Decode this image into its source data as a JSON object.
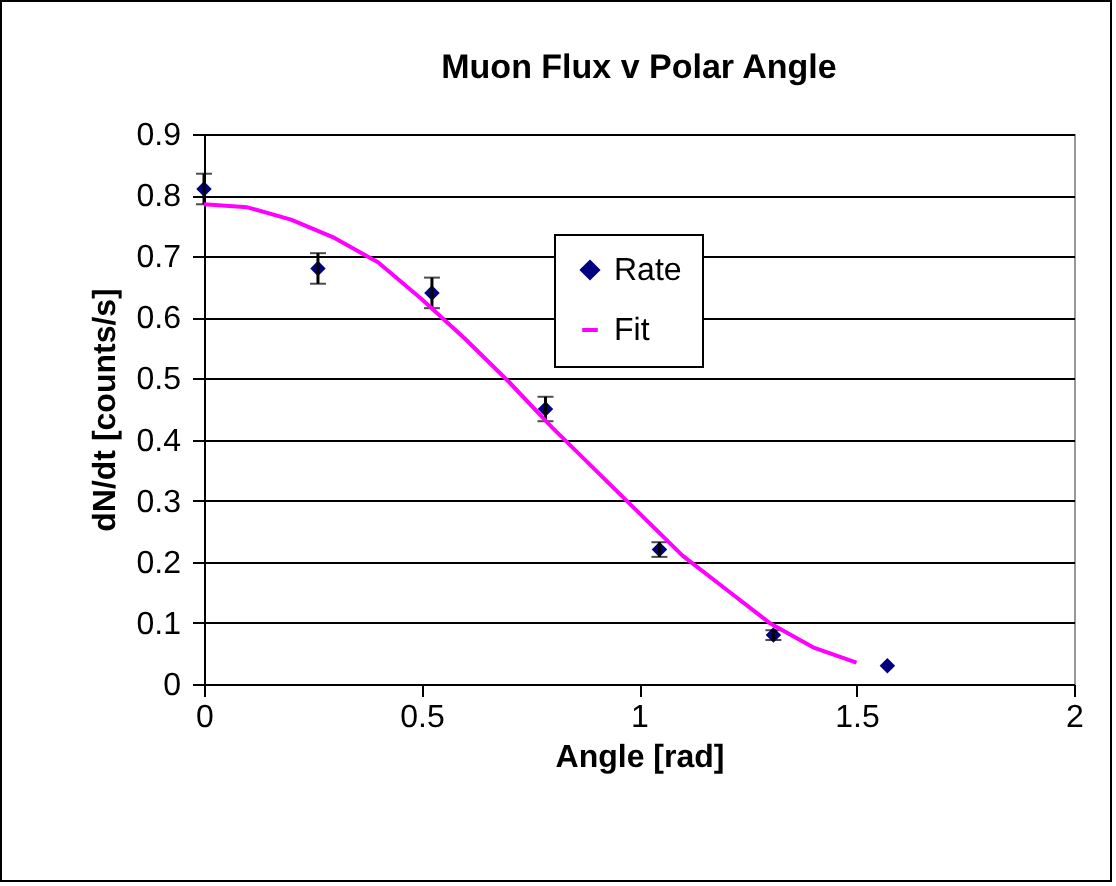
{
  "chart_data": {
    "type": "scatter",
    "title": "Muon Flux v Polar Angle",
    "xlabel": "Angle [rad]",
    "ylabel": "dN/dt [counts/s]",
    "series": [
      {
        "name": "Rate",
        "type": "scatter",
        "color": "#000080",
        "marker": "diamond",
        "x": [
          0,
          0.262,
          0.524,
          0.785,
          1.047,
          1.309,
          1.571
        ],
        "values": [
          0.81,
          0.68,
          0.64,
          0.45,
          0.22,
          0.08,
          0.03
        ],
        "errors": [
          0.025,
          0.025,
          0.025,
          0.02,
          0.012,
          0.008,
          null
        ]
      },
      {
        "name": "Fit",
        "type": "line",
        "color": "#ff00ff",
        "marker": "none",
        "x": [
          0,
          0.1,
          0.2,
          0.3,
          0.4,
          0.5,
          0.6,
          0.7,
          0.8,
          0.9,
          1.0,
          1.1,
          1.2,
          1.3,
          1.4,
          1.5
        ],
        "values": [
          0.785,
          0.78,
          0.76,
          0.73,
          0.69,
          0.63,
          0.565,
          0.495,
          0.42,
          0.35,
          0.28,
          0.21,
          0.155,
          0.1,
          0.06,
          0.035
        ]
      }
    ],
    "xlim": [
      0,
      2
    ],
    "xticks": [
      0,
      0.5,
      1,
      1.5,
      2
    ],
    "ylim": [
      0,
      0.9
    ],
    "yticks": [
      0,
      0.1,
      0.2,
      0.3,
      0.4,
      0.5,
      0.6,
      0.7,
      0.8,
      0.9
    ],
    "grid": "y",
    "legend": "top"
  }
}
